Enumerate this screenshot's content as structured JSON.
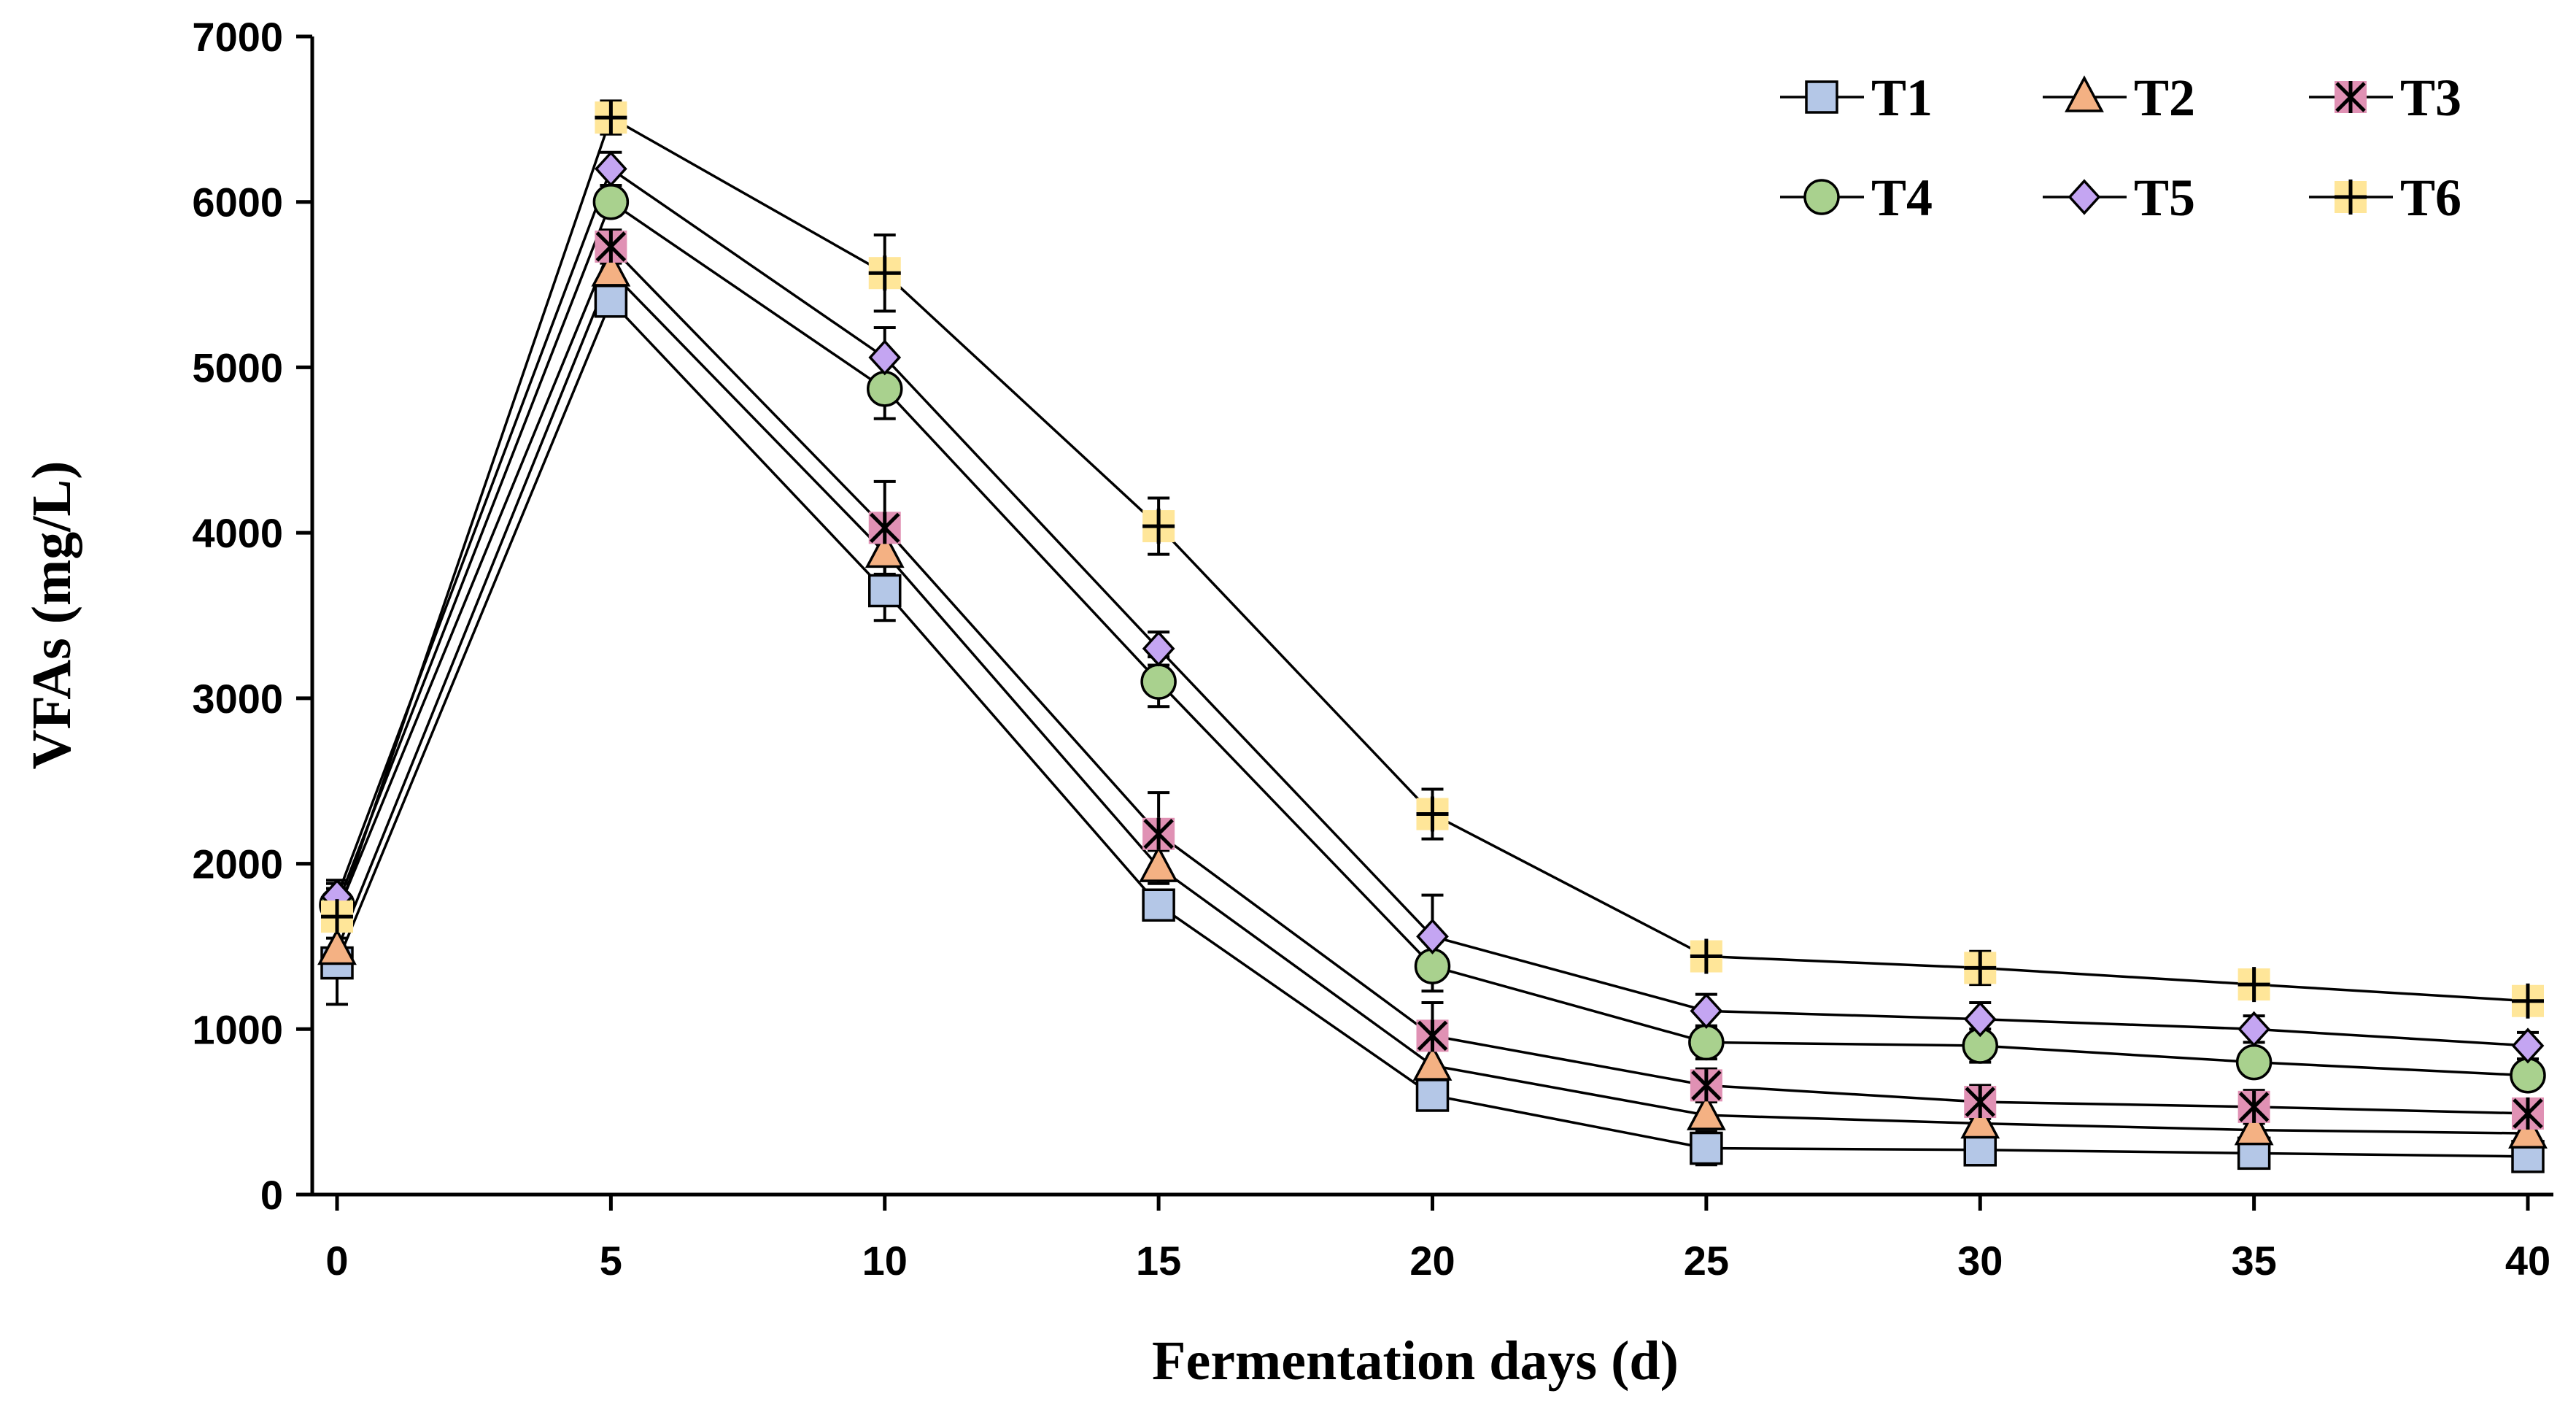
{
  "chart_data": {
    "type": "line",
    "title": "",
    "xlabel": "Fermentation days (d)",
    "ylabel": "VFAs (mg/L)",
    "xlim": [
      0,
      40
    ],
    "ylim": [
      0,
      7000
    ],
    "xticks": [
      0,
      5,
      10,
      15,
      20,
      25,
      30,
      35,
      40
    ],
    "yticks": [
      0,
      1000,
      2000,
      3000,
      4000,
      5000,
      6000,
      7000
    ],
    "x": [
      0,
      5,
      10,
      15,
      20,
      25,
      30,
      35,
      40
    ],
    "grid": false,
    "legend_position": "top-right",
    "series": [
      {
        "name": "T1",
        "marker": "square",
        "color": "#b4c7e7",
        "values": [
          1400,
          5400,
          3650,
          1750,
          600,
          280,
          270,
          250,
          230
        ],
        "errors": [
          250,
          80,
          180,
          80,
          80,
          100,
          80,
          60,
          60
        ]
      },
      {
        "name": "T2",
        "marker": "triangle",
        "color": "#f4b183",
        "values": [
          1480,
          5580,
          3880,
          1980,
          780,
          480,
          430,
          390,
          370
        ],
        "errors": [
          150,
          80,
          200,
          100,
          100,
          80,
          80,
          60,
          60
        ]
      },
      {
        "name": "T3",
        "marker": "x-star",
        "color": "#e091b4",
        "values": [
          1700,
          5730,
          4030,
          2180,
          960,
          660,
          560,
          530,
          490
        ],
        "errors": [
          150,
          100,
          280,
          250,
          200,
          100,
          100,
          100,
          80
        ]
      },
      {
        "name": "T4",
        "marker": "circle",
        "color": "#a9d18e",
        "values": [
          1750,
          6000,
          4870,
          3100,
          1380,
          920,
          900,
          800,
          720
        ],
        "errors": [
          100,
          80,
          180,
          150,
          150,
          100,
          100,
          80,
          80
        ]
      },
      {
        "name": "T5",
        "marker": "diamond",
        "color": "#c4a5f2",
        "values": [
          1800,
          6200,
          5060,
          3300,
          1560,
          1110,
          1060,
          1000,
          900
        ],
        "errors": [
          100,
          100,
          180,
          100,
          250,
          100,
          100,
          80,
          80
        ]
      },
      {
        "name": "T6",
        "marker": "plus",
        "color": "#ffe699",
        "values": [
          1680,
          6510,
          5570,
          4040,
          2300,
          1440,
          1370,
          1270,
          1170
        ],
        "errors": [
          200,
          100,
          230,
          170,
          150,
          60,
          100,
          60,
          80
        ]
      }
    ]
  }
}
